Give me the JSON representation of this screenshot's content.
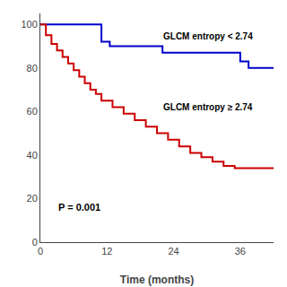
{
  "chart_data": {
    "type": "step",
    "xlabel": "Time (months)",
    "xlim": [
      0,
      42
    ],
    "ylim": [
      0,
      105
    ],
    "xticks": [
      0,
      12,
      24,
      36
    ],
    "yticks": [
      0,
      20,
      40,
      60,
      80,
      100
    ],
    "grid": false,
    "series": [
      {
        "color": "#0000cc",
        "x": [
          0,
          11,
          11,
          12.5,
          12.5,
          22,
          22,
          36,
          36,
          37.5,
          37.5,
          42
        ],
        "values": [
          100,
          100,
          92,
          92,
          90,
          90,
          87,
          87,
          83,
          83,
          80,
          80
        ]
      },
      {
        "color": "#cc0000",
        "x": [
          0,
          1,
          1,
          2,
          2,
          3,
          3,
          4,
          4,
          5,
          5,
          6,
          6,
          7,
          7,
          8,
          8,
          9,
          9,
          10,
          10,
          11,
          11,
          13,
          13,
          15,
          15,
          17,
          17,
          19,
          19,
          21,
          21,
          23,
          23,
          25,
          25,
          27,
          27,
          29,
          29,
          31,
          31,
          33,
          33,
          35,
          35,
          37,
          37,
          42
        ],
        "values": [
          100,
          100,
          95,
          95,
          91,
          91,
          88,
          88,
          85,
          85,
          82,
          82,
          79,
          79,
          76,
          76,
          73,
          73,
          70,
          70,
          68,
          68,
          65,
          65,
          62,
          62,
          59,
          59,
          56,
          56,
          53,
          53,
          50,
          50,
          47,
          47,
          44,
          44,
          41,
          41,
          39,
          39,
          37,
          37,
          35,
          35,
          34,
          34,
          34,
          34
        ]
      }
    ],
    "annotations": [
      {
        "text": "GLCM entropy < 2.74"
      },
      {
        "text": "GLCM entropy ≥ 2.74"
      },
      {
        "text": "P = 0.001"
      }
    ]
  }
}
